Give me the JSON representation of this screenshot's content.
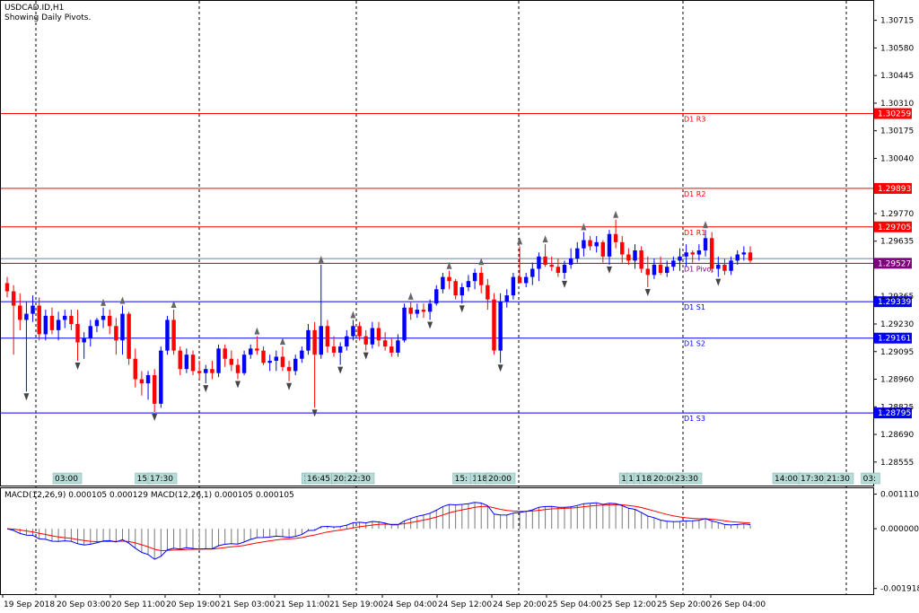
{
  "header": {
    "symbol_label": "USDCAD.ID,H1",
    "info_label": "Showing Daily Pivots."
  },
  "chart_data": [
    {
      "type": "candlestick",
      "title": "USDCAD.ID,H1",
      "yticks": [
        "1.30715",
        "1.30580",
        "1.30445",
        "1.30310",
        "1.30175",
        "1.30040",
        "1.29770",
        "1.29635",
        "1.29365",
        "1.29230",
        "1.29095",
        "1.28960",
        "1.28825",
        "1.28690",
        "1.28555"
      ],
      "ylim": [
        1.2844,
        1.3081
      ],
      "xticks": [
        "19 Sep 2018",
        "20 Sep 03:00",
        "20 Sep 11:00",
        "20 Sep 19:00",
        "21 Sep 03:00",
        "21 Sep 11:00",
        "21 Sep 19:00",
        "24 Sep 04:00",
        "24 Sep 12:00",
        "24 Sep 20:00",
        "25 Sep 04:00",
        "25 Sep 12:00",
        "25 Sep 20:00",
        "26 Sep 04:00"
      ],
      "pivots": [
        {
          "name": "D1 R3",
          "value": 1.30259,
          "value_label": "1.30259",
          "color": "#ff0000"
        },
        {
          "name": "D1 R2",
          "value": 1.29893,
          "value_label": "1.29893",
          "color": "#ff0000"
        },
        {
          "name": "D1 R1",
          "value": 1.29705,
          "value_label": "1.29705",
          "color": "#ff0000"
        },
        {
          "name": "D1 Pivot",
          "value": 1.29527,
          "value_label": "1.29527",
          "color": "#800080"
        },
        {
          "name": "D1 S1",
          "value": 1.29339,
          "value_label": "1.29339",
          "color": "#0000ff"
        },
        {
          "name": "D1 S2",
          "value": 1.29161,
          "value_label": "1.29161",
          "color": "#0000ff"
        },
        {
          "name": "D1 S3",
          "value": 1.28795,
          "value_label": "1.28795",
          "color": "#0000ff"
        }
      ],
      "bid_line": {
        "value": 1.2955,
        "color": "#708090"
      },
      "candles": [
        [
          1.2943,
          1.2946,
          1.2936,
          1.2939
        ],
        [
          1.2939,
          1.2942,
          1.2908,
          1.2932
        ],
        [
          1.2932,
          1.2938,
          1.292,
          1.2925
        ],
        [
          1.2925,
          1.2934,
          1.289,
          1.2928
        ],
        [
          1.2928,
          1.2937,
          1.2924,
          1.2932
        ],
        [
          1.2932,
          1.2936,
          1.2915,
          1.2918
        ],
        [
          1.2918,
          1.293,
          1.2915,
          1.2927
        ],
        [
          1.2927,
          1.2931,
          1.2918,
          1.292
        ],
        [
          1.292,
          1.2929,
          1.2915,
          1.2925
        ],
        [
          1.2925,
          1.293,
          1.2921,
          1.2927
        ],
        [
          1.2927,
          1.293,
          1.292,
          1.2923
        ],
        [
          1.2923,
          1.293,
          1.2905,
          1.2914
        ],
        [
          1.2914,
          1.2919,
          1.2906,
          1.2916
        ],
        [
          1.2916,
          1.2925,
          1.2912,
          1.2922
        ],
        [
          1.2922,
          1.2926,
          1.2919,
          1.2925
        ],
        [
          1.2925,
          1.2931,
          1.2921,
          1.2927
        ],
        [
          1.2927,
          1.293,
          1.2918,
          1.2922
        ],
        [
          1.2922,
          1.2926,
          1.2908,
          1.2915
        ],
        [
          1.2915,
          1.2932,
          1.2908,
          1.2928
        ],
        [
          1.2928,
          1.2929,
          1.2903,
          1.2906
        ],
        [
          1.2906,
          1.2911,
          1.2892,
          1.2896
        ],
        [
          1.2896,
          1.29,
          1.2888,
          1.2894
        ],
        [
          1.2894,
          1.29,
          1.2886,
          1.2898
        ],
        [
          1.2898,
          1.2901,
          1.288,
          1.2884
        ],
        [
          1.2884,
          1.2912,
          1.2882,
          1.291
        ],
        [
          1.291,
          1.2927,
          1.2908,
          1.2925
        ],
        [
          1.2925,
          1.293,
          1.2908,
          1.291
        ],
        [
          1.291,
          1.2912,
          1.2898,
          1.2901
        ],
        [
          1.2901,
          1.2911,
          1.2899,
          1.2908
        ],
        [
          1.2908,
          1.291,
          1.2898,
          1.29
        ],
        [
          1.29,
          1.2905,
          1.2896,
          1.2899
        ],
        [
          1.2899,
          1.2903,
          1.2894,
          1.2901
        ],
        [
          1.2901,
          1.2905,
          1.2896,
          1.2899
        ],
        [
          1.2899,
          1.2913,
          1.2897,
          1.2911
        ],
        [
          1.2911,
          1.2913,
          1.2902,
          1.2906
        ],
        [
          1.2906,
          1.291,
          1.29,
          1.2903
        ],
        [
          1.2903,
          1.2906,
          1.2896,
          1.2899
        ],
        [
          1.2899,
          1.291,
          1.2898,
          1.2908
        ],
        [
          1.2908,
          1.2913,
          1.2906,
          1.2911
        ],
        [
          1.2911,
          1.2917,
          1.2908,
          1.291
        ],
        [
          1.291,
          1.2912,
          1.2903,
          1.2904
        ],
        [
          1.2904,
          1.2908,
          1.29,
          1.2905
        ],
        [
          1.2905,
          1.291,
          1.29,
          1.2907
        ],
        [
          1.2907,
          1.2912,
          1.29,
          1.2902
        ],
        [
          1.2902,
          1.2905,
          1.2895,
          1.29
        ],
        [
          1.29,
          1.2908,
          1.2898,
          1.2906
        ],
        [
          1.2906,
          1.2912,
          1.2904,
          1.291
        ],
        [
          1.291,
          1.2923,
          1.2908,
          1.292
        ],
        [
          1.292,
          1.2924,
          1.2882,
          1.2908
        ],
        [
          1.2908,
          1.2952,
          1.2906,
          1.2922
        ],
        [
          1.2922,
          1.2925,
          1.2909,
          1.2912
        ],
        [
          1.2912,
          1.2917,
          1.2907,
          1.2909
        ],
        [
          1.2909,
          1.2914,
          1.2903,
          1.2912
        ],
        [
          1.2912,
          1.292,
          1.291,
          1.2917
        ],
        [
          1.2917,
          1.2925,
          1.2915,
          1.2922
        ],
        [
          1.2922,
          1.2924,
          1.2915,
          1.2917
        ],
        [
          1.2917,
          1.292,
          1.291,
          1.2913
        ],
        [
          1.2913,
          1.2924,
          1.2911,
          1.2921
        ],
        [
          1.2921,
          1.2924,
          1.2912,
          1.2915
        ],
        [
          1.2915,
          1.2919,
          1.291,
          1.2912
        ],
        [
          1.2912,
          1.2916,
          1.2907,
          1.2909
        ],
        [
          1.2909,
          1.2918,
          1.2907,
          1.2915
        ],
        [
          1.2915,
          1.2933,
          1.2914,
          1.2931
        ],
        [
          1.2931,
          1.2934,
          1.2925,
          1.2928
        ],
        [
          1.2928,
          1.2933,
          1.2926,
          1.293
        ],
        [
          1.293,
          1.2933,
          1.2926,
          1.2929
        ],
        [
          1.2929,
          1.2935,
          1.2925,
          1.2933
        ],
        [
          1.2933,
          1.2942,
          1.2932,
          1.294
        ],
        [
          1.294,
          1.2948,
          1.2938,
          1.2946
        ],
        [
          1.2946,
          1.2949,
          1.294,
          1.2944
        ],
        [
          1.2944,
          1.2945,
          1.2935,
          1.2937
        ],
        [
          1.2937,
          1.2943,
          1.2933,
          1.2941
        ],
        [
          1.2941,
          1.2947,
          1.2939,
          1.2944
        ],
        [
          1.2944,
          1.295,
          1.294,
          1.2948
        ],
        [
          1.2948,
          1.2951,
          1.2938,
          1.2942
        ],
        [
          1.2942,
          1.2945,
          1.293,
          1.2935
        ],
        [
          1.2935,
          1.2938,
          1.2908,
          1.291
        ],
        [
          1.291,
          1.2938,
          1.2904,
          1.2934
        ],
        [
          1.2934,
          1.294,
          1.2931,
          1.2937
        ],
        [
          1.2937,
          1.2948,
          1.2935,
          1.2946
        ],
        [
          1.2946,
          1.2961,
          1.2944,
          1.2943
        ],
        [
          1.2943,
          1.2948,
          1.2941,
          1.2946
        ],
        [
          1.2946,
          1.2953,
          1.2942,
          1.295
        ],
        [
          1.295,
          1.2958,
          1.2944,
          1.2956
        ],
        [
          1.2956,
          1.2962,
          1.2951,
          1.2952
        ],
        [
          1.2952,
          1.2956,
          1.2949,
          1.2951
        ],
        [
          1.2951,
          1.2955,
          1.2946,
          1.2948
        ],
        [
          1.2948,
          1.2954,
          1.2945,
          1.2952
        ],
        [
          1.2952,
          1.296,
          1.295,
          1.2955
        ],
        [
          1.2955,
          1.2963,
          1.2953,
          1.296
        ],
        [
          1.296,
          1.2968,
          1.2956,
          1.2964
        ],
        [
          1.2964,
          1.2966,
          1.2959,
          1.2961
        ],
        [
          1.2961,
          1.2966,
          1.2958,
          1.2963
        ],
        [
          1.2963,
          1.2964,
          1.2953,
          1.2956
        ],
        [
          1.2956,
          1.2969,
          1.2952,
          1.2967
        ],
        [
          1.2967,
          1.2974,
          1.296,
          1.2963
        ],
        [
          1.2963,
          1.2966,
          1.2953,
          1.2957
        ],
        [
          1.2957,
          1.296,
          1.2952,
          1.2954
        ],
        [
          1.2954,
          1.2962,
          1.295,
          1.2959
        ],
        [
          1.2959,
          1.2961,
          1.2948,
          1.295
        ],
        [
          1.295,
          1.2956,
          1.2941,
          1.2947
        ],
        [
          1.2947,
          1.2955,
          1.2945,
          1.2952
        ],
        [
          1.2952,
          1.2956,
          1.2947,
          1.2948
        ],
        [
          1.2948,
          1.2954,
          1.2946,
          1.2951
        ],
        [
          1.2951,
          1.2956,
          1.2949,
          1.2954
        ],
        [
          1.2954,
          1.296,
          1.2949,
          1.2956
        ],
        [
          1.2956,
          1.2962,
          1.2951,
          1.2958
        ],
        [
          1.2958,
          1.2959,
          1.2953,
          1.2957
        ],
        [
          1.2957,
          1.2962,
          1.2954,
          1.2959
        ],
        [
          1.2959,
          1.2969,
          1.2956,
          1.2965
        ],
        [
          1.2965,
          1.2968,
          1.2948,
          1.295
        ],
        [
          1.295,
          1.2956,
          1.2946,
          1.2952
        ],
        [
          1.2952,
          1.2955,
          1.2947,
          1.2949
        ],
        [
          1.2949,
          1.2956,
          1.2947,
          1.2954
        ],
        [
          1.2954,
          1.2959,
          1.2952,
          1.2957
        ],
        [
          1.2957,
          1.2961,
          1.2954,
          1.2958
        ],
        [
          1.2958,
          1.2961,
          1.2953,
          1.2954
        ]
      ],
      "bull_color": "#0000ff",
      "bear_color": "#ff0000",
      "time_labels": [
        {
          "text": "03:00",
          "pos": 75
        },
        {
          "text": "15:",
          "pos": 161
        },
        {
          "text": "17:30",
          "pos": 181
        },
        {
          "text": "1",
          "pos": 341
        },
        {
          "text": "16:45",
          "pos": 356
        },
        {
          "text": "20:",
          "pos": 380
        },
        {
          "text": "22:30",
          "pos": 401
        },
        {
          "text": "15:",
          "pos": 515
        },
        {
          "text": "1",
          "pos": 529
        },
        {
          "text": "18:",
          "pos": 540
        },
        {
          "text": "20:00",
          "pos": 558
        },
        {
          "text": "1",
          "pos": 695
        },
        {
          "text": "1",
          "pos": 703
        },
        {
          "text": "1",
          "pos": 711
        },
        {
          "text": "18:",
          "pos": 723
        },
        {
          "text": "20:00",
          "pos": 742
        },
        {
          "text": "23:30",
          "pos": 766
        },
        {
          "text": "14:00",
          "pos": 877
        },
        {
          "text": "17:30",
          "pos": 906
        },
        {
          "text": "21:30",
          "pos": 935
        },
        {
          "text": "03:",
          "pos": 970
        }
      ]
    },
    {
      "type": "histogram+line",
      "title": "MACD(12,26,9) 0.000105 0.000129 MACD(12,26,1) 0.000105 0.000105",
      "yticks": [
        "0.001110",
        "0.000000",
        "-0.001918"
      ],
      "ylim": [
        -0.0021,
        0.0013
      ],
      "macd_line_color": "#0000ff",
      "signal_line_color": "#ff0000"
    }
  ]
}
